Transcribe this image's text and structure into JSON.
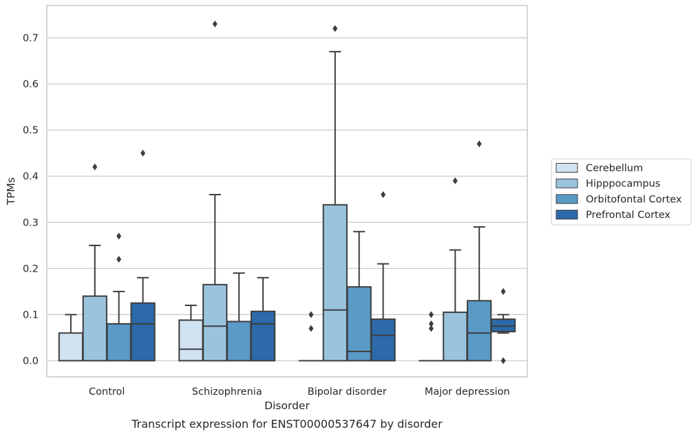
{
  "caption": "Transcript expression for ENST00000537647 by disorder",
  "chart_data": {
    "type": "boxplot",
    "xlabel": "Disorder",
    "ylabel": "TPMs",
    "ylim": [
      -0.035,
      0.77
    ],
    "yticks": [
      0.0,
      0.1,
      0.2,
      0.3,
      0.4,
      0.5,
      0.6,
      0.7
    ],
    "ytick_labels": [
      "0.0",
      "0.1",
      "0.2",
      "0.3",
      "0.4",
      "0.5",
      "0.6",
      "0.7"
    ],
    "grid": "horizontal",
    "legend_position": "right",
    "categories": [
      "Control",
      "Schizophrenia",
      "Bipolar disorder",
      "Major depression"
    ],
    "series": [
      {
        "name": "Cerebellum",
        "color": "#d1e2f2",
        "boxes": [
          {
            "whislo": 0.0,
            "q1": 0.0,
            "med": 0.0,
            "q3": 0.06,
            "whishi": 0.1,
            "fliers": []
          },
          {
            "whislo": 0.0,
            "q1": 0.0,
            "med": 0.025,
            "q3": 0.088,
            "whishi": 0.12,
            "fliers": []
          },
          {
            "whislo": 0.0,
            "q1": 0.0,
            "med": 0.0,
            "q3": 0.0,
            "whishi": 0.0,
            "fliers": [
              0.1,
              0.07
            ]
          },
          {
            "whislo": 0.0,
            "q1": 0.0,
            "med": 0.0,
            "q3": 0.0,
            "whishi": 0.0,
            "fliers": [
              0.1,
              0.08,
              0.07
            ]
          }
        ]
      },
      {
        "name": "Hipppocampus",
        "color": "#9ac4de",
        "boxes": [
          {
            "whislo": 0.0,
            "q1": 0.0,
            "med": 0.0,
            "q3": 0.14,
            "whishi": 0.25,
            "fliers": [
              0.42
            ]
          },
          {
            "whislo": 0.0,
            "q1": 0.0,
            "med": 0.075,
            "q3": 0.165,
            "whishi": 0.36,
            "fliers": [
              0.73
            ]
          },
          {
            "whislo": 0.0,
            "q1": 0.0,
            "med": 0.11,
            "q3": 0.338,
            "whishi": 0.67,
            "fliers": [
              0.72
            ]
          },
          {
            "whislo": 0.0,
            "q1": 0.0,
            "med": 0.0,
            "q3": 0.105,
            "whishi": 0.24,
            "fliers": [
              0.39
            ]
          }
        ]
      },
      {
        "name": "Orbitofontal Cortex",
        "color": "#5a9ac7",
        "boxes": [
          {
            "whislo": 0.0,
            "q1": 0.0,
            "med": 0.0,
            "q3": 0.08,
            "whishi": 0.15,
            "fliers": [
              0.27,
              0.22
            ]
          },
          {
            "whislo": 0.0,
            "q1": 0.0,
            "med": 0.0,
            "q3": 0.085,
            "whishi": 0.19,
            "fliers": []
          },
          {
            "whislo": 0.0,
            "q1": 0.0,
            "med": 0.02,
            "q3": 0.16,
            "whishi": 0.28,
            "fliers": []
          },
          {
            "whislo": 0.0,
            "q1": 0.0,
            "med": 0.06,
            "q3": 0.13,
            "whishi": 0.29,
            "fliers": [
              0.47
            ]
          }
        ]
      },
      {
        "name": "Prefrontal Cortex",
        "color": "#2c6aa9",
        "boxes": [
          {
            "whislo": 0.0,
            "q1": 0.0,
            "med": 0.08,
            "q3": 0.125,
            "whishi": 0.18,
            "fliers": [
              0.45
            ]
          },
          {
            "whislo": 0.0,
            "q1": 0.0,
            "med": 0.08,
            "q3": 0.107,
            "whishi": 0.18,
            "fliers": []
          },
          {
            "whislo": 0.0,
            "q1": 0.0,
            "med": 0.055,
            "q3": 0.09,
            "whishi": 0.21,
            "fliers": [
              0.36
            ]
          },
          {
            "whislo": 0.06,
            "q1": 0.063,
            "med": 0.075,
            "q3": 0.09,
            "whishi": 0.1,
            "fliers": [
              0.15,
              0.0
            ]
          }
        ]
      }
    ]
  }
}
